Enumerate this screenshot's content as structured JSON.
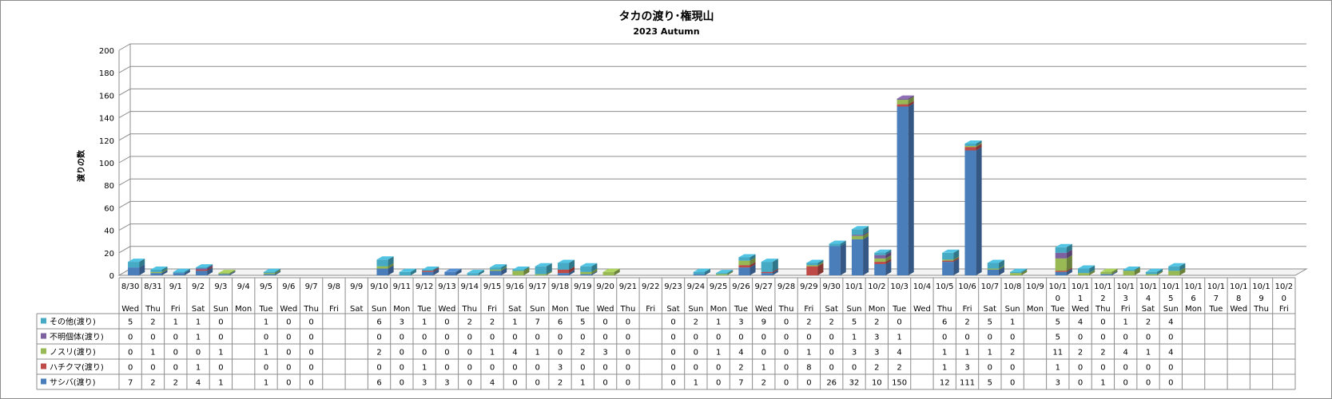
{
  "chart_data": {
    "type": "bar",
    "stacked": true,
    "title": "タカの渡り･権現山",
    "subtitle": "2023 Autumn",
    "ylabel": "渡りの数",
    "ylim": [
      0,
      200
    ],
    "yticks": [
      0,
      20,
      40,
      60,
      80,
      100,
      120,
      140,
      160,
      180,
      200
    ],
    "categories": [
      "8/30",
      "8/31",
      "9/1",
      "9/2",
      "9/3",
      "9/4",
      "9/5",
      "9/6",
      "9/7",
      "9/8",
      "9/9",
      "9/10",
      "9/11",
      "9/12",
      "9/13",
      "9/14",
      "9/15",
      "9/16",
      "9/17",
      "9/18",
      "9/19",
      "9/20",
      "9/21",
      "9/22",
      "9/23",
      "9/24",
      "9/25",
      "9/26",
      "9/27",
      "9/28",
      "9/29",
      "9/30",
      "10/1",
      "10/2",
      "10/3",
      "10/4",
      "10/5",
      "10/6",
      "10/7",
      "10/8",
      "10/9",
      "10/10",
      "10/11",
      "10/12",
      "10/13",
      "10/14",
      "10/15",
      "10/16",
      "10/17",
      "10/18",
      "10/19",
      "10/20"
    ],
    "category_labels": [
      [
        "8/30"
      ],
      [
        "8/31"
      ],
      [
        "9/1"
      ],
      [
        "9/2"
      ],
      [
        "9/3"
      ],
      [
        "9/4"
      ],
      [
        "9/5"
      ],
      [
        "9/6"
      ],
      [
        "9/7"
      ],
      [
        "9/8"
      ],
      [
        "9/9"
      ],
      [
        "9/10"
      ],
      [
        "9/11"
      ],
      [
        "9/12"
      ],
      [
        "9/13"
      ],
      [
        "9/14"
      ],
      [
        "9/15"
      ],
      [
        "9/16"
      ],
      [
        "9/17"
      ],
      [
        "9/18"
      ],
      [
        "9/19"
      ],
      [
        "9/20"
      ],
      [
        "9/21"
      ],
      [
        "9/22"
      ],
      [
        "9/23"
      ],
      [
        "9/24"
      ],
      [
        "9/25"
      ],
      [
        "9/26"
      ],
      [
        "9/27"
      ],
      [
        "9/28"
      ],
      [
        "9/29"
      ],
      [
        "9/30"
      ],
      [
        "10/1"
      ],
      [
        "10/2"
      ],
      [
        "10/3"
      ],
      [
        "10/4"
      ],
      [
        "10/5"
      ],
      [
        "10/6"
      ],
      [
        "10/7"
      ],
      [
        "10/8"
      ],
      [
        "10/9"
      ],
      [
        "10/1",
        "0"
      ],
      [
        "10/1",
        "1"
      ],
      [
        "10/1",
        "2"
      ],
      [
        "10/1",
        "3"
      ],
      [
        "10/1",
        "4"
      ],
      [
        "10/1",
        "5"
      ],
      [
        "10/1",
        "6"
      ],
      [
        "10/1",
        "7"
      ],
      [
        "10/1",
        "8"
      ],
      [
        "10/1",
        "9"
      ],
      [
        "10/2",
        "0"
      ]
    ],
    "weekdays": [
      "Wed",
      "Thu",
      "Fri",
      "Sat",
      "Sun",
      "Mon",
      "Tue",
      "Wed",
      "Thu",
      "Fri",
      "Sat",
      "Sun",
      "Mon",
      "Tue",
      "Wed",
      "Thu",
      "Fri",
      "Sat",
      "Sun",
      "Mon",
      "Tue",
      "Wed",
      "Thu",
      "Fri",
      "Sat",
      "Sun",
      "Mon",
      "Tue",
      "Wed",
      "Thu",
      "Fri",
      "Sat",
      "Sun",
      "Mon",
      "Tue",
      "Wed",
      "Thu",
      "Fri",
      "Sat",
      "Sun",
      "Mon",
      "Tue",
      "Wed",
      "Thu",
      "Fri",
      "Sat",
      "Sun",
      "Mon",
      "Tue",
      "Wed",
      "Thu",
      "Fri"
    ],
    "series": [
      {
        "name": "サシバ(渡り)",
        "color": "#4a7ebb",
        "values": [
          7,
          2,
          2,
          4,
          1,
          null,
          1,
          0,
          0,
          null,
          null,
          6,
          0,
          3,
          3,
          0,
          4,
          0,
          0,
          2,
          1,
          0,
          0,
          null,
          0,
          1,
          0,
          7,
          2,
          0,
          0,
          26,
          32,
          10,
          150,
          null,
          12,
          111,
          5,
          0,
          null,
          3,
          0,
          1,
          0,
          0,
          0,
          null,
          null,
          null,
          null,
          null
        ]
      },
      {
        "name": "ハチクマ(渡り)",
        "color": "#be4b48",
        "values": [
          0,
          0,
          0,
          1,
          0,
          null,
          0,
          0,
          0,
          null,
          null,
          0,
          0,
          1,
          0,
          0,
          0,
          0,
          0,
          3,
          0,
          0,
          0,
          null,
          0,
          0,
          0,
          2,
          1,
          0,
          8,
          0,
          0,
          2,
          2,
          null,
          1,
          3,
          0,
          0,
          null,
          1,
          0,
          0,
          0,
          0,
          0,
          null,
          null,
          null,
          null,
          null
        ]
      },
      {
        "name": "ノスリ(渡り)",
        "color": "#98b954",
        "values": [
          0,
          1,
          0,
          0,
          1,
          null,
          1,
          0,
          0,
          null,
          null,
          2,
          0,
          0,
          0,
          0,
          1,
          4,
          1,
          0,
          2,
          3,
          0,
          null,
          0,
          0,
          1,
          4,
          0,
          0,
          1,
          0,
          3,
          3,
          4,
          null,
          1,
          1,
          1,
          2,
          null,
          11,
          2,
          2,
          4,
          1,
          4,
          null,
          null,
          null,
          null,
          null
        ]
      },
      {
        "name": "不明個体(渡り)",
        "color": "#7d60a0",
        "values": [
          0,
          0,
          0,
          1,
          0,
          null,
          0,
          0,
          0,
          null,
          null,
          0,
          0,
          0,
          0,
          0,
          0,
          0,
          0,
          0,
          0,
          0,
          0,
          null,
          0,
          0,
          0,
          0,
          0,
          0,
          0,
          0,
          1,
          3,
          1,
          null,
          0,
          0,
          0,
          0,
          null,
          5,
          0,
          0,
          0,
          0,
          0,
          null,
          null,
          null,
          null,
          null
        ]
      },
      {
        "name": "その他(渡り)",
        "color": "#46aac5",
        "values": [
          5,
          2,
          1,
          1,
          0,
          null,
          1,
          0,
          0,
          null,
          null,
          6,
          3,
          1,
          0,
          2,
          2,
          1,
          7,
          6,
          5,
          0,
          0,
          null,
          0,
          2,
          1,
          3,
          9,
          0,
          2,
          2,
          5,
          2,
          0,
          null,
          6,
          2,
          5,
          1,
          null,
          5,
          4,
          0,
          1,
          2,
          4,
          null,
          null,
          null,
          null,
          null
        ]
      }
    ]
  }
}
